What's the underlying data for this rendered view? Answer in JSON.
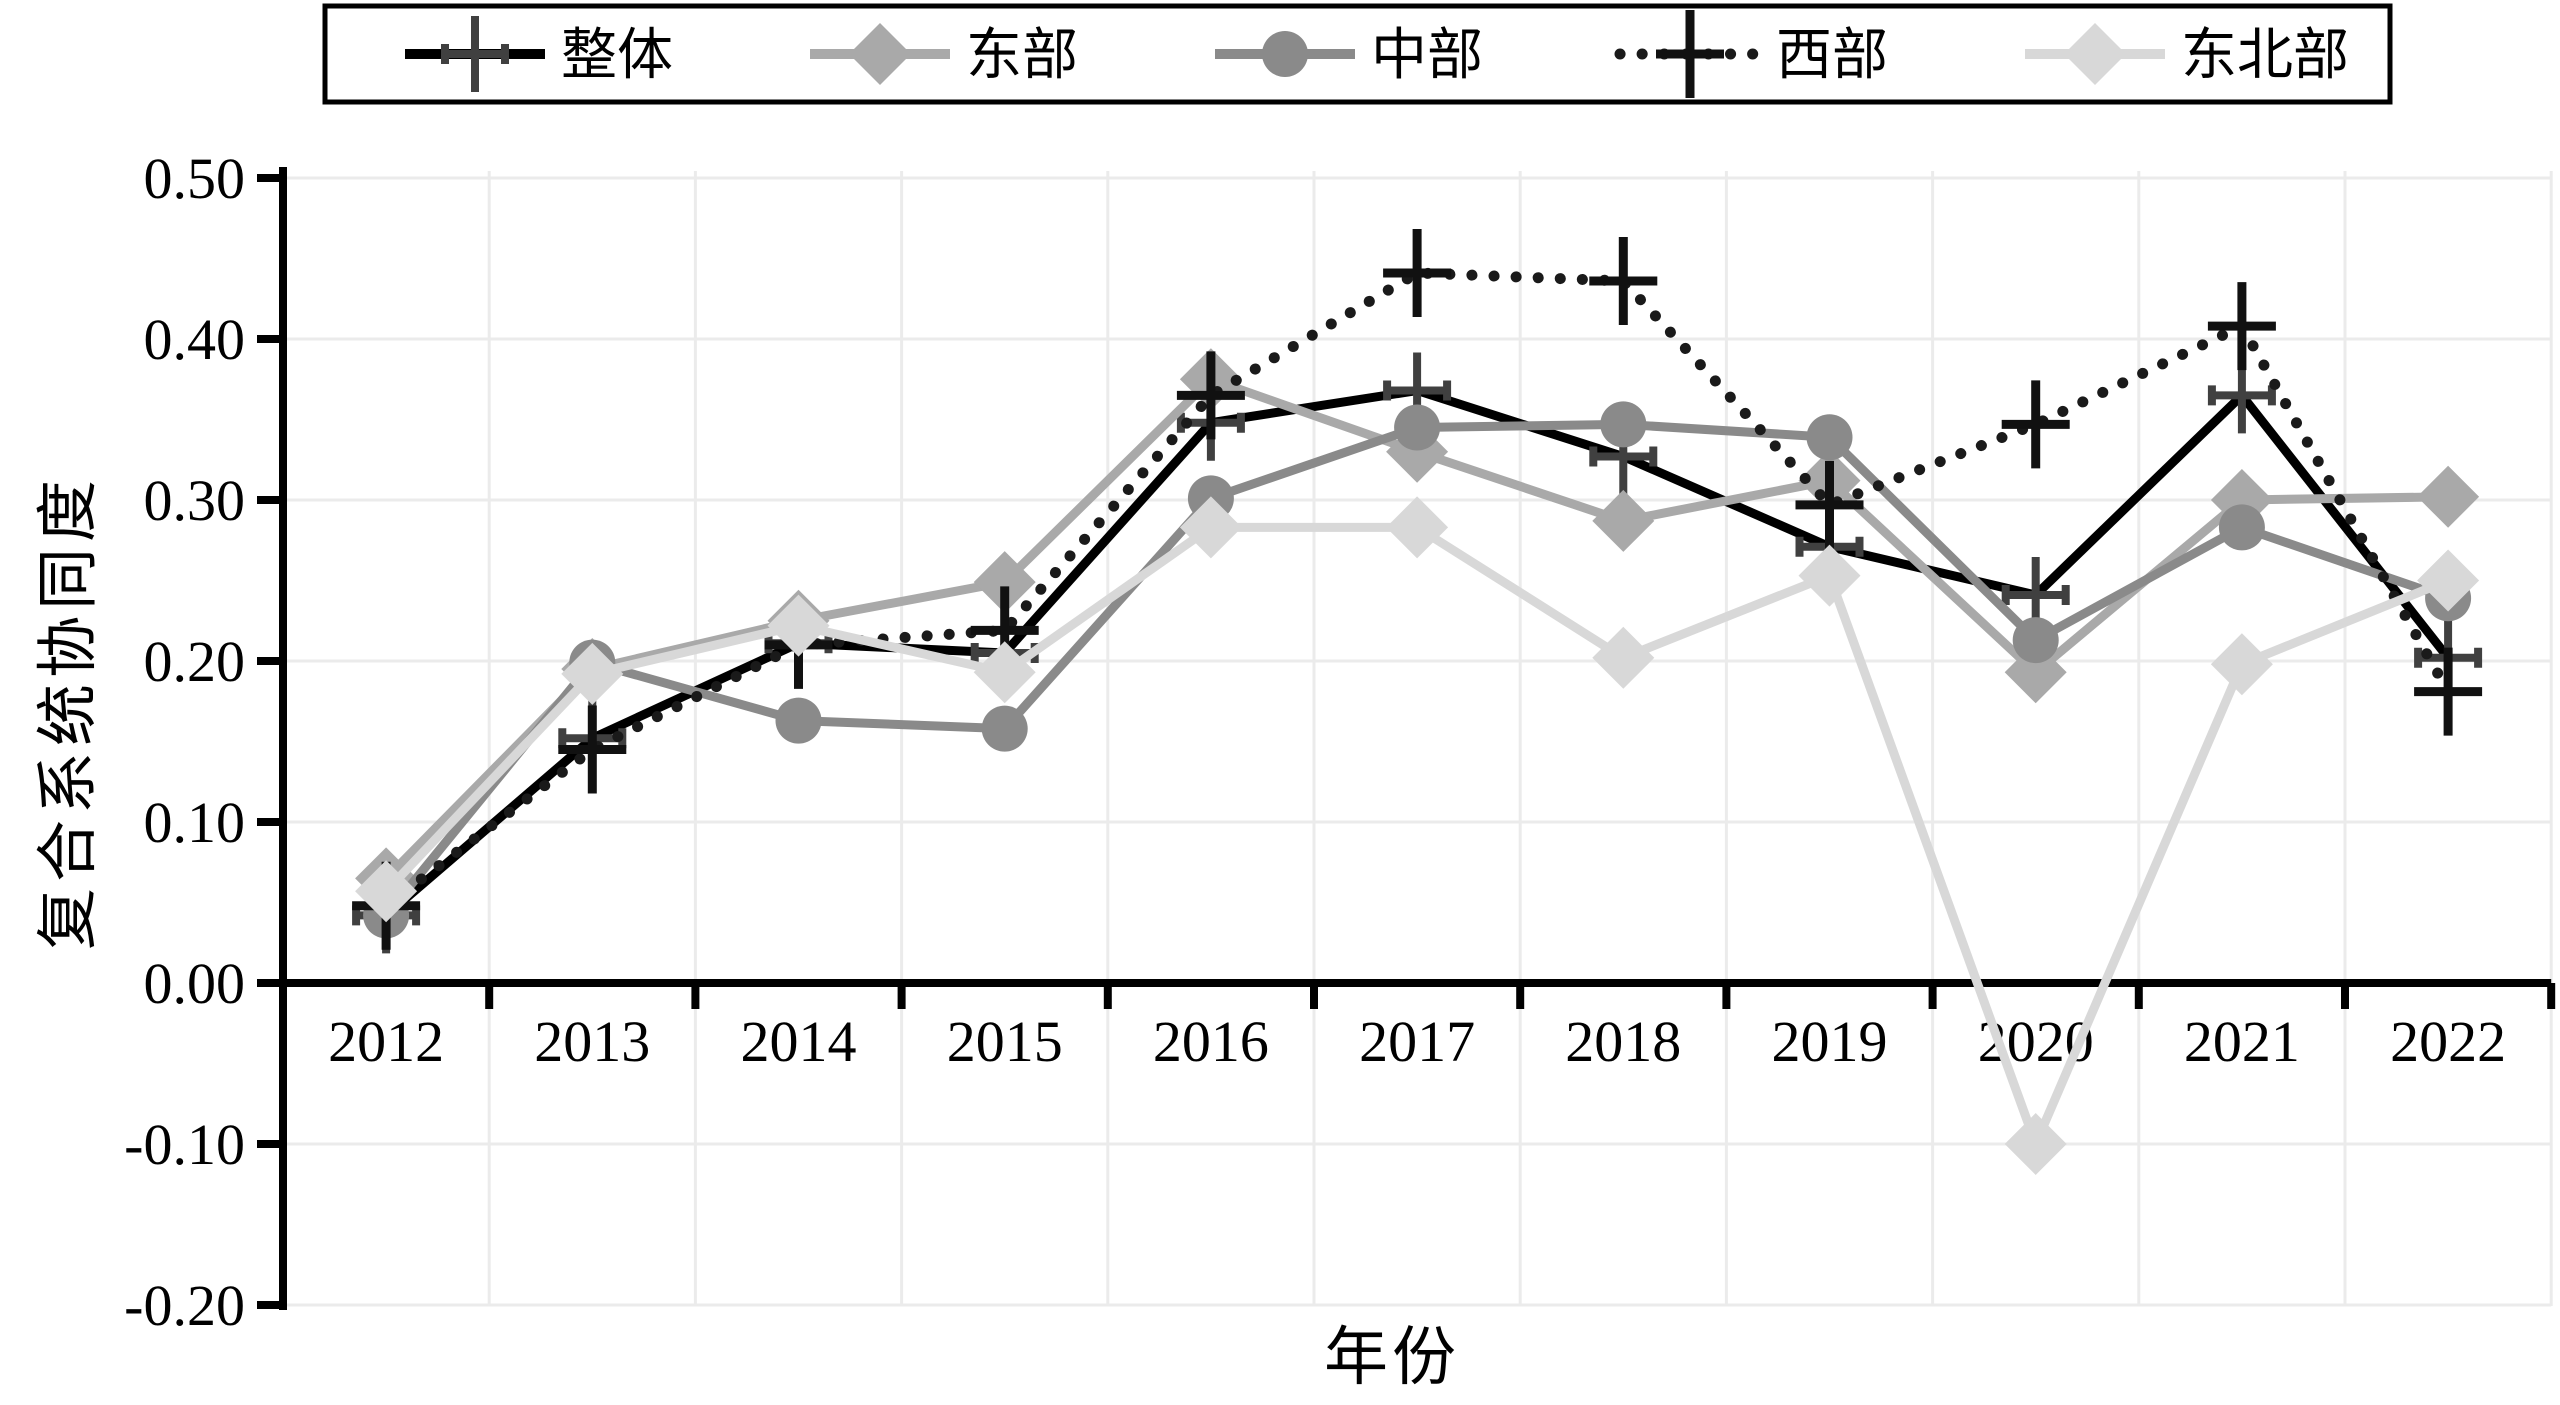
{
  "chart_data": {
    "type": "line",
    "title": "",
    "xlabel": "年份",
    "ylabel": "复合系统协同度",
    "x": [
      2012,
      2013,
      2014,
      2015,
      2016,
      2017,
      2018,
      2019,
      2020,
      2021,
      2022
    ],
    "ylim": [
      -0.2,
      0.5
    ],
    "ytick_labels": [
      "0.50",
      "0.40",
      "0.30",
      "0.20",
      "0.10",
      "0.00",
      "-0.10",
      "-0.20"
    ],
    "ytick_values": [
      0.5,
      0.4,
      0.3,
      0.2,
      0.1,
      0.0,
      -0.1,
      -0.2
    ],
    "grid": true,
    "legend_position": "top-center-boxed",
    "series": [
      {
        "key": "overall",
        "name": "整体",
        "line": "solid",
        "line_color": "#000000",
        "marker": "plus-capped",
        "marker_color": "#404040",
        "values": [
          0.042,
          0.152,
          0.211,
          0.205,
          0.348,
          0.368,
          0.327,
          0.271,
          0.241,
          0.365,
          0.202
        ]
      },
      {
        "key": "east",
        "name": "东部",
        "line": "solid",
        "line_color": "#a9a9a9",
        "marker": "diamond",
        "marker_color": "#a9a9a9",
        "values": [
          0.065,
          0.195,
          0.225,
          0.249,
          0.375,
          0.33,
          0.287,
          0.312,
          0.193,
          0.3,
          0.302
        ]
      },
      {
        "key": "central",
        "name": "中部",
        "line": "solid",
        "line_color": "#8a8a8a",
        "marker": "circle",
        "marker_color": "#8a8a8a",
        "values": [
          0.042,
          0.199,
          0.163,
          0.158,
          0.301,
          0.345,
          0.347,
          0.339,
          0.213,
          0.283,
          0.239
        ]
      },
      {
        "key": "west",
        "name": "西部",
        "line": "dotted",
        "line_color": "#1a1a1a",
        "marker": "plus",
        "marker_color": "#111111",
        "values": [
          0.048,
          0.145,
          0.21,
          0.219,
          0.365,
          0.441,
          0.436,
          0.297,
          0.347,
          0.408,
          0.181
        ]
      },
      {
        "key": "northeast",
        "name": "东北部",
        "line": "solid",
        "line_color": "#d8d8d8",
        "marker": "diamond",
        "marker_color": "#d8d8d8",
        "values": [
          0.057,
          0.192,
          0.222,
          0.193,
          0.283,
          0.283,
          0.202,
          0.253,
          -0.1,
          0.198,
          0.25
        ]
      }
    ],
    "colors": {
      "grid": "#ebebeb",
      "axis": "#000000",
      "background": "#ffffff"
    }
  }
}
